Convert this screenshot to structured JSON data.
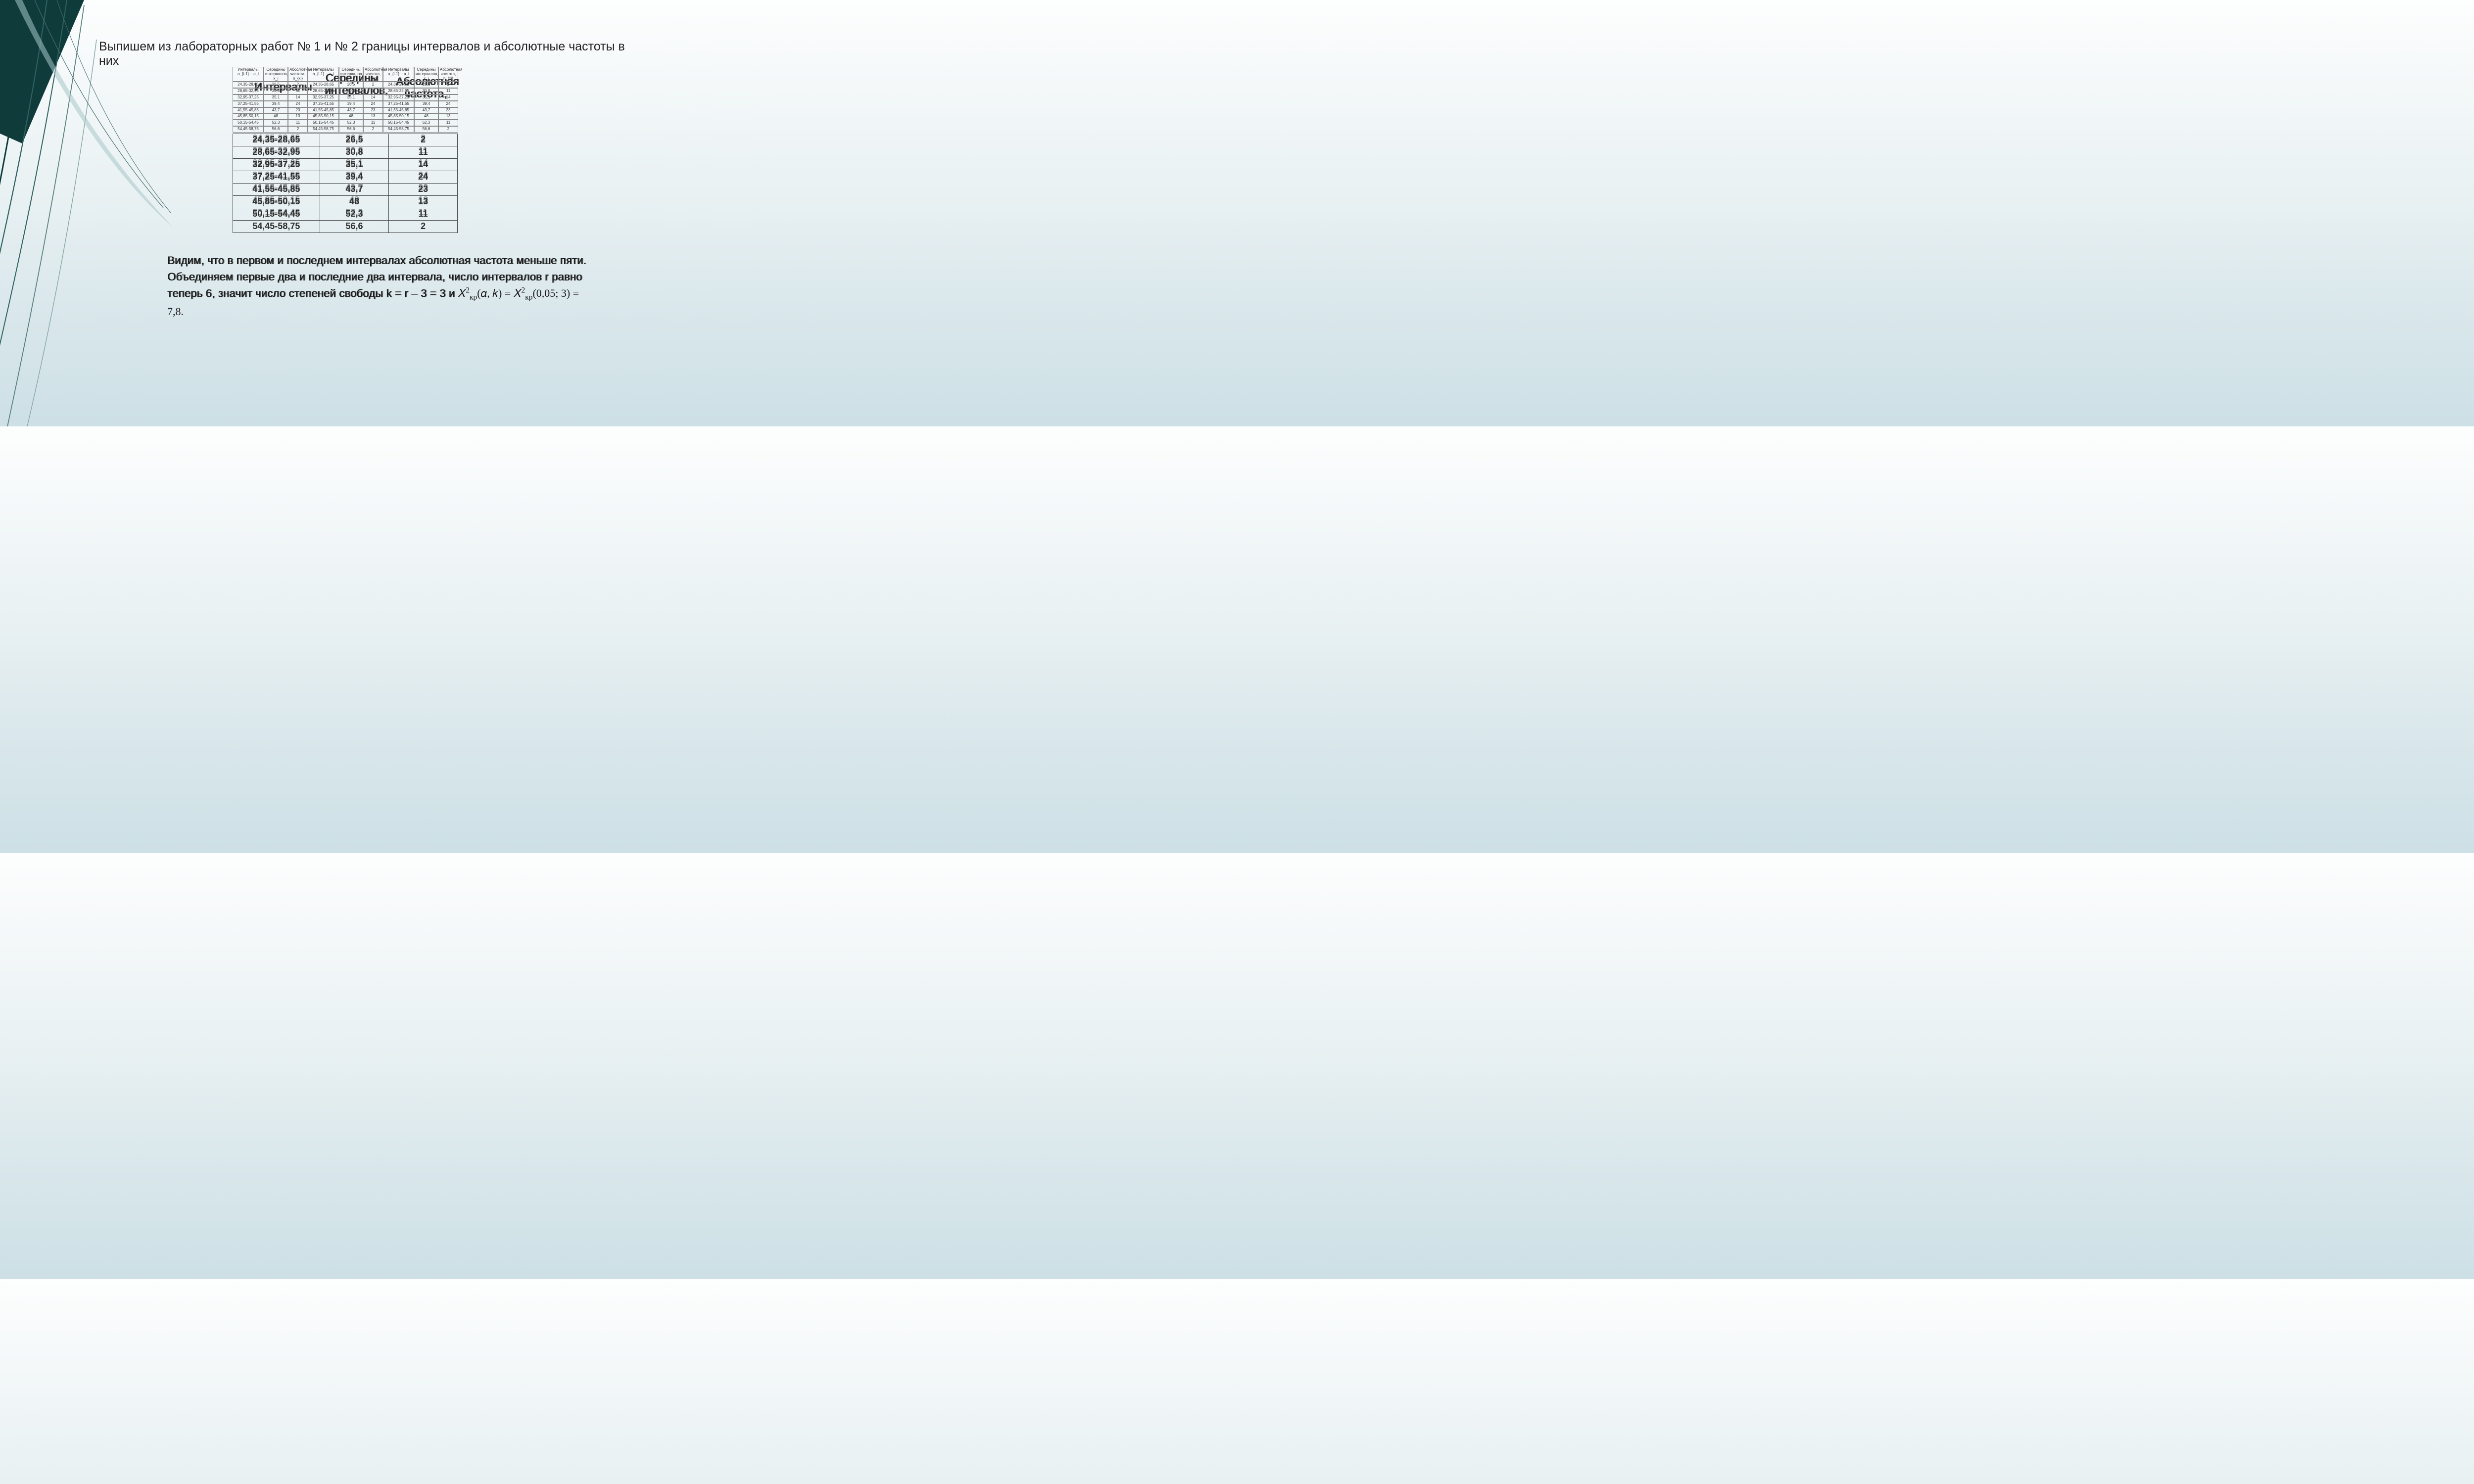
{
  "title": "Выпишем из лабораторных работ № 1 и № 2 границы интервалов и абсолютные частоты в них",
  "overlay": {
    "intervals": "Интервалы",
    "midpoints": "Середины интервалов,",
    "freq": "Абсолютная частота,"
  },
  "mini_headers": {
    "c1": "Интервалы\na_{i-1} − a_i",
    "c2": "Середины интервалов,\nx_i",
    "c3": "Абсолютная частота,\nn_{xi}"
  },
  "mini_rows": [
    {
      "a": "24,35-28,65",
      "b": "26,5",
      "c": "2"
    },
    {
      "a": "28,65-32,95",
      "b": "30,8",
      "c": "11"
    },
    {
      "a": "32,95-37,25",
      "b": "35,1",
      "c": "14"
    },
    {
      "a": "37,25-41,55",
      "b": "39,4",
      "c": "24"
    },
    {
      "a": "41,55-45,85",
      "b": "43,7",
      "c": "23"
    },
    {
      "a": "45,85-50,15",
      "b": "48",
      "c": "13"
    },
    {
      "a": "50,15-54,45",
      "b": "52,3",
      "c": "11"
    },
    {
      "a": "54,45-58,75",
      "b": "56,6",
      "c": "2"
    }
  ],
  "big_rows": [
    {
      "a": "24,35-28,65",
      "b": "26,5",
      "c": "2"
    },
    {
      "a": "28,65-32,95",
      "b": "30,8",
      "c": "11"
    },
    {
      "a": "32,95-37,25",
      "b": "35,1",
      "c": "14"
    },
    {
      "a": "37,25-41,55",
      "b": "39,4",
      "c": "24"
    },
    {
      "a": "41,55-45,85",
      "b": "43,7",
      "c": "23"
    },
    {
      "a": "45,85-50,15",
      "b": "48",
      "c": "13"
    },
    {
      "a": "50,15-54,45",
      "b": "52,3",
      "c": "11"
    },
    {
      "a": "54,45-58,75",
      "b": "56,6",
      "c": "2"
    }
  ],
  "paragraph": "Видим, что в первом и последнем интервалах абсолютная частота меньше пяти. Объединяем первые два и последние два интервала, число интервалов r равно теперь 6, значит число степеней свободы  k = r – 3 = 3 и ",
  "formula": "X²_кр(α, k) = X²_кр(0,05; 3) = 7,8."
}
